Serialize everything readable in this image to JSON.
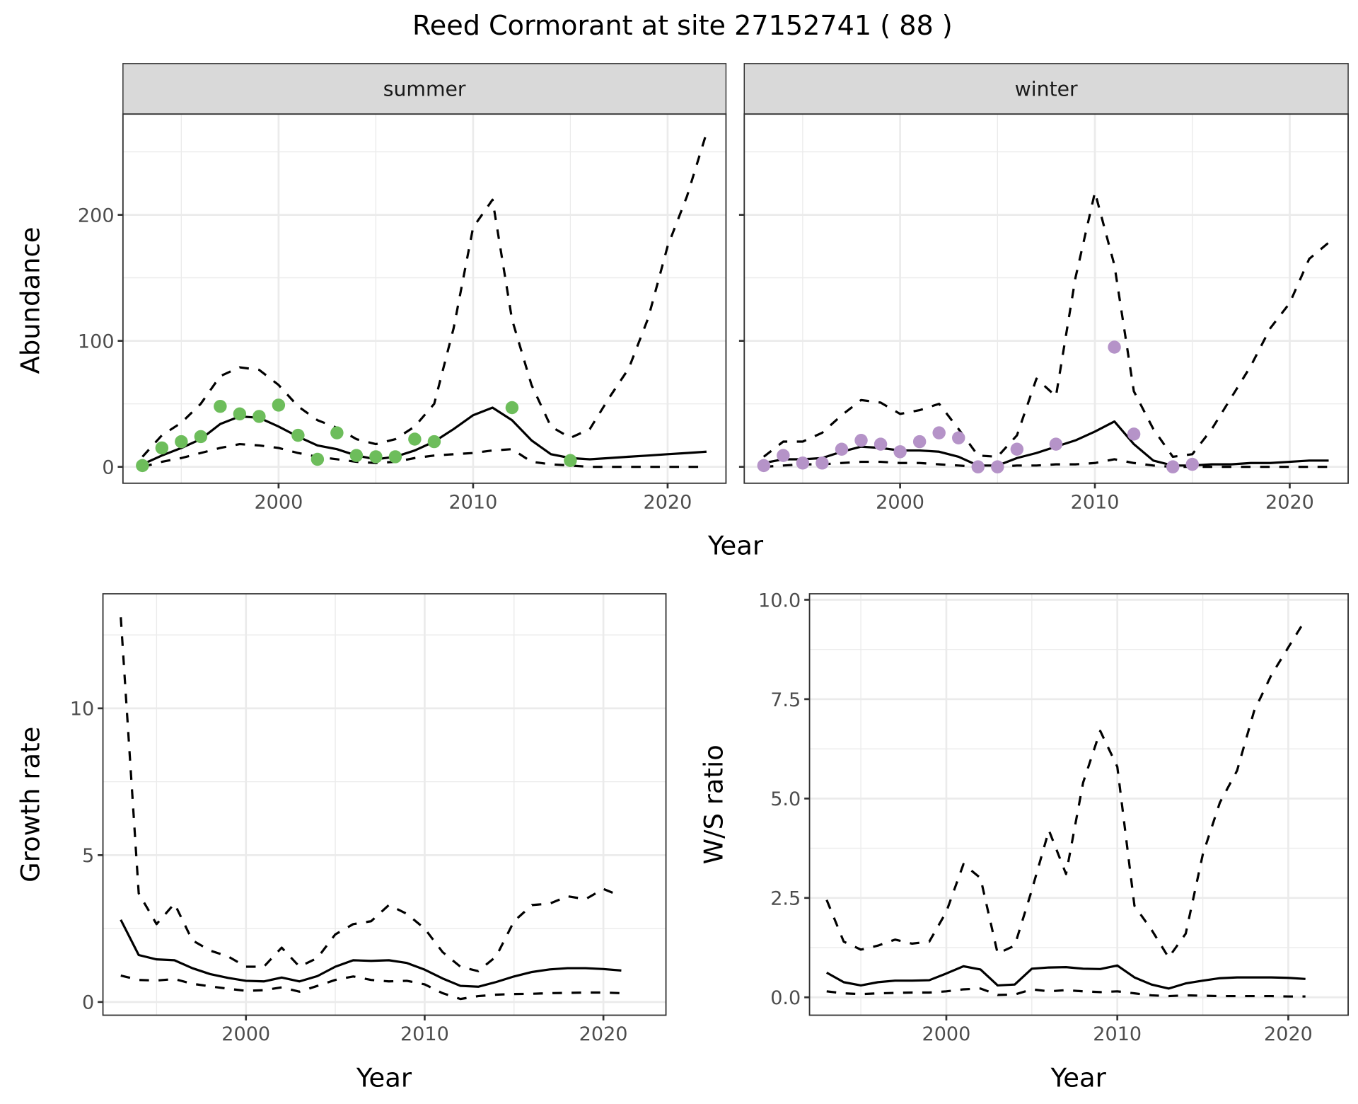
{
  "title": "Reed Cormorant at site 27152741 ( 88 )",
  "colors": {
    "summer_points": "#6dbd5b",
    "winter_points": "#b593c8",
    "lines": "#000000",
    "strip_bg": "#d9d9d9",
    "grid": "#ebebeb"
  },
  "chart_data": [
    {
      "id": "abundance-summer",
      "type": "line",
      "facet_label": "summer",
      "title": "",
      "xlabel": "Year",
      "ylabel": "Abundance",
      "xlim": [
        1992,
        2023
      ],
      "ylim": [
        -13,
        280
      ],
      "x_ticks": [
        2000,
        2010,
        2020
      ],
      "x_tick_labels": [
        "2000",
        "2010",
        "2020"
      ],
      "y_ticks": [
        0,
        100,
        200
      ],
      "y_tick_labels": [
        "0",
        "100",
        "200"
      ],
      "grid": true,
      "x": [
        1993,
        1994,
        1995,
        1996,
        1997,
        1998,
        1999,
        2000,
        2001,
        2002,
        2003,
        2004,
        2005,
        2006,
        2007,
        2008,
        2009,
        2010,
        2011,
        2012,
        2013,
        2014,
        2015,
        2016,
        2017,
        2018,
        2019,
        2020,
        2021,
        2022
      ],
      "series": [
        {
          "name": "mean",
          "style": "solid",
          "values": [
            2,
            9,
            15,
            22,
            34,
            40,
            39,
            32,
            24,
            17,
            14,
            9,
            6,
            8,
            13,
            20,
            30,
            41,
            47,
            37,
            21,
            10,
            7,
            6,
            7,
            8,
            9,
            10,
            11,
            12
          ]
        },
        {
          "name": "upper",
          "style": "dashed",
          "values": [
            8,
            25,
            35,
            50,
            72,
            79,
            77,
            65,
            48,
            37,
            31,
            22,
            18,
            22,
            32,
            50,
            110,
            190,
            212,
            117,
            65,
            32,
            23,
            30,
            55,
            78,
            118,
            175,
            215,
            265
          ]
        },
        {
          "name": "lower",
          "style": "dashed",
          "values": [
            0,
            4,
            7,
            11,
            15,
            18,
            17,
            15,
            11,
            8,
            6,
            4,
            3,
            4,
            7,
            9,
            10,
            11,
            13,
            14,
            4,
            2,
            1,
            0,
            0,
            0,
            0,
            0,
            0,
            0
          ]
        }
      ],
      "points": {
        "name": "observed",
        "x": [
          1993,
          1994,
          1995,
          1996,
          1997,
          1998,
          1999,
          2000,
          2001,
          2002,
          2003,
          2004,
          2005,
          2006,
          2007,
          2008,
          2012,
          2015
        ],
        "values": [
          1,
          15,
          20,
          24,
          48,
          42,
          40,
          49,
          25,
          6,
          27,
          9,
          8,
          8,
          22,
          20,
          47,
          5
        ]
      }
    },
    {
      "id": "abundance-winter",
      "type": "line",
      "facet_label": "winter",
      "title": "",
      "xlabel": "Year",
      "ylabel": "Abundance",
      "xlim": [
        1992,
        2023
      ],
      "ylim": [
        -13,
        280
      ],
      "x_ticks": [
        2000,
        2010,
        2020
      ],
      "x_tick_labels": [
        "2000",
        "2010",
        "2020"
      ],
      "y_ticks": [
        0,
        100,
        200
      ],
      "y_tick_labels": [
        "0",
        "100",
        "200"
      ],
      "grid": true,
      "x": [
        1993,
        1994,
        1995,
        1996,
        1997,
        1998,
        1999,
        2000,
        2001,
        2002,
        2003,
        2004,
        2005,
        2006,
        2007,
        2008,
        2009,
        2010,
        2011,
        2012,
        2013,
        2014,
        2015,
        2016,
        2017,
        2018,
        2019,
        2020,
        2021,
        2022
      ],
      "series": [
        {
          "name": "mean",
          "style": "solid",
          "values": [
            3,
            6,
            6,
            7,
            12,
            16,
            15,
            13,
            13,
            12,
            8,
            1,
            1,
            7,
            11,
            16,
            21,
            28,
            36,
            18,
            5,
            1,
            1,
            2,
            2,
            3,
            3,
            4,
            5,
            5
          ]
        },
        {
          "name": "upper",
          "style": "dashed",
          "values": [
            8,
            20,
            20,
            27,
            41,
            53,
            51,
            42,
            45,
            50,
            30,
            9,
            8,
            25,
            70,
            56,
            150,
            218,
            160,
            60,
            30,
            8,
            10,
            30,
            55,
            80,
            110,
            130,
            165,
            178
          ]
        },
        {
          "name": "lower",
          "style": "dashed",
          "values": [
            0,
            1,
            2,
            2,
            3,
            4,
            4,
            3,
            3,
            2,
            1,
            0,
            0,
            1,
            1,
            2,
            2,
            3,
            6,
            3,
            1,
            0,
            0,
            0,
            0,
            0,
            0,
            0,
            0,
            0
          ]
        }
      ],
      "points": {
        "name": "observed",
        "x": [
          1993,
          1994,
          1995,
          1996,
          1997,
          1998,
          1999,
          2000,
          2001,
          2002,
          2003,
          2004,
          2005,
          2006,
          2008,
          2011,
          2012,
          2014,
          2015
        ],
        "values": [
          1,
          9,
          3,
          3,
          14,
          21,
          18,
          12,
          20,
          27,
          23,
          0,
          0,
          14,
          18,
          95,
          26,
          0,
          2
        ]
      }
    },
    {
      "id": "growth-rate",
      "type": "line",
      "title": "",
      "xlabel": "Year",
      "ylabel": "Growth rate",
      "xlim": [
        1992,
        2023.5
      ],
      "ylim": [
        -0.45,
        13.9
      ],
      "x_ticks": [
        2000,
        2010,
        2020
      ],
      "x_tick_labels": [
        "2000",
        "2010",
        "2020"
      ],
      "y_ticks": [
        0,
        5,
        10
      ],
      "y_tick_labels": [
        "0",
        "5",
        "10"
      ],
      "grid": true,
      "x": [
        1993,
        1994,
        1995,
        1996,
        1997,
        1998,
        1999,
        2000,
        2001,
        2002,
        2003,
        2004,
        2005,
        2006,
        2007,
        2008,
        2009,
        2010,
        2011,
        2012,
        2013,
        2014,
        2015,
        2016,
        2017,
        2018,
        2019,
        2020,
        2021
      ],
      "series": [
        {
          "name": "mean",
          "style": "solid",
          "values": [
            2.8,
            1.6,
            1.45,
            1.42,
            1.15,
            0.95,
            0.82,
            0.72,
            0.7,
            0.83,
            0.7,
            0.88,
            1.2,
            1.42,
            1.4,
            1.42,
            1.33,
            1.1,
            0.8,
            0.55,
            0.52,
            0.68,
            0.87,
            1.02,
            1.11,
            1.15,
            1.15,
            1.12,
            1.07
          ]
        },
        {
          "name": "upper",
          "style": "dashed",
          "values": [
            13.1,
            3.7,
            2.65,
            3.35,
            2.1,
            1.75,
            1.55,
            1.2,
            1.2,
            1.85,
            1.2,
            1.5,
            2.3,
            2.65,
            2.75,
            3.3,
            3.0,
            2.5,
            1.7,
            1.2,
            1.05,
            1.55,
            2.75,
            3.3,
            3.35,
            3.6,
            3.5,
            3.85,
            3.6
          ]
        },
        {
          "name": "lower",
          "style": "dashed",
          "values": [
            0.9,
            0.75,
            0.73,
            0.78,
            0.62,
            0.53,
            0.45,
            0.38,
            0.4,
            0.5,
            0.35,
            0.55,
            0.75,
            0.87,
            0.75,
            0.7,
            0.72,
            0.6,
            0.3,
            0.1,
            0.2,
            0.25,
            0.27,
            0.28,
            0.3,
            0.31,
            0.32,
            0.32,
            0.3
          ]
        }
      ]
    },
    {
      "id": "ws-ratio",
      "type": "line",
      "title": "",
      "xlabel": "Year",
      "ylabel": "W/S ratio",
      "xlim": [
        1992,
        2023.5
      ],
      "ylim": [
        -0.45,
        10.15
      ],
      "x_ticks": [
        2000,
        2010,
        2020
      ],
      "x_tick_labels": [
        "2000",
        "2010",
        "2020"
      ],
      "y_ticks": [
        0.0,
        2.5,
        5.0,
        7.5,
        10.0
      ],
      "y_tick_labels": [
        "0.0",
        "2.5",
        "5.0",
        "7.5",
        "10.0"
      ],
      "grid": true,
      "x": [
        1993,
        1994,
        1995,
        1996,
        1997,
        1998,
        1999,
        2000,
        2001,
        2002,
        2003,
        2004,
        2005,
        2006,
        2007,
        2008,
        2009,
        2010,
        2011,
        2012,
        2013,
        2014,
        2015,
        2016,
        2017,
        2018,
        2019,
        2020,
        2021
      ],
      "series": [
        {
          "name": "mean",
          "style": "solid",
          "values": [
            0.62,
            0.38,
            0.3,
            0.38,
            0.42,
            0.42,
            0.43,
            0.6,
            0.78,
            0.7,
            0.3,
            0.32,
            0.72,
            0.75,
            0.76,
            0.72,
            0.71,
            0.8,
            0.5,
            0.32,
            0.22,
            0.35,
            0.42,
            0.48,
            0.5,
            0.5,
            0.5,
            0.49,
            0.46
          ]
        },
        {
          "name": "upper",
          "style": "dashed",
          "values": [
            2.45,
            1.4,
            1.2,
            1.3,
            1.45,
            1.35,
            1.4,
            2.15,
            3.35,
            3.0,
            1.1,
            1.3,
            2.7,
            4.2,
            3.1,
            5.4,
            6.7,
            5.8,
            2.3,
            1.7,
            1.0,
            1.6,
            3.6,
            4.9,
            5.7,
            7.2,
            8.1,
            8.8,
            9.5
          ]
        },
        {
          "name": "lower",
          "style": "dashed",
          "values": [
            0.15,
            0.1,
            0.08,
            0.1,
            0.11,
            0.12,
            0.12,
            0.15,
            0.2,
            0.22,
            0.06,
            0.07,
            0.2,
            0.15,
            0.18,
            0.15,
            0.13,
            0.15,
            0.1,
            0.05,
            0.03,
            0.05,
            0.04,
            0.03,
            0.03,
            0.03,
            0.03,
            0.02,
            0.02
          ]
        }
      ]
    }
  ],
  "shared": {
    "abundance_xlabel": "Year"
  }
}
